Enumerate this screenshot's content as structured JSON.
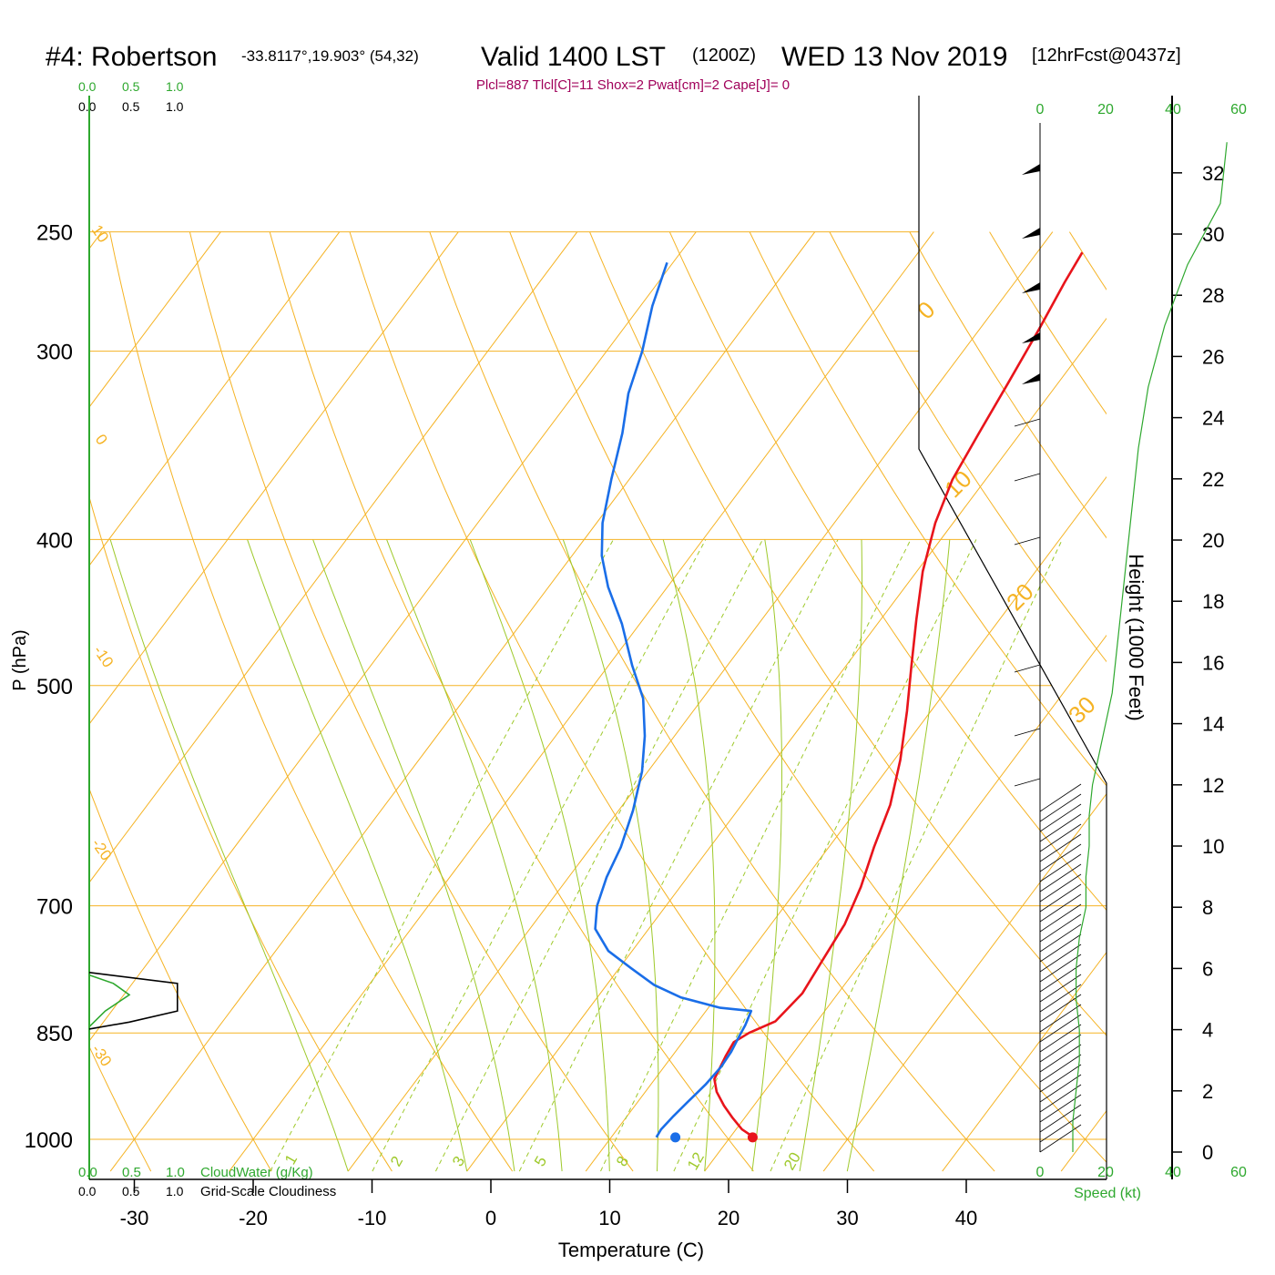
{
  "header": {
    "station": "#4: Robertson",
    "coords": "-33.8117°,19.903° (54,32)",
    "valid": "Valid 1400 LST",
    "zulu": "(1200Z)",
    "date": "WED 13 Nov 2019",
    "forecast": "[12hrFcst@0437z]",
    "indices": "Plcl=887 Tlcl[C]=11 Shox=2 Pwat[cm]=2 Cape[J]= 0"
  },
  "colors": {
    "temperature": "#e8141b",
    "dewpoint": "#1a6ee8",
    "isotherm": "#f5b324",
    "dry_adiabat": "#f5b324",
    "moist_adiabat": "#9ec92a",
    "mixing_ratio": "#9ec92a",
    "cloud": "#2ea82e",
    "indices": "#a0005a"
  },
  "chart_data": {
    "type": "line",
    "xlabel": "Temperature (C)",
    "ylabel": "P (hPa)",
    "y2label": "Height (1000 Feet)",
    "x_ticks": [
      -30,
      -20,
      -10,
      0,
      10,
      20,
      30,
      40
    ],
    "p_ticks": [
      250,
      300,
      400,
      500,
      700,
      850,
      1000
    ],
    "height_ticks": [
      0,
      2,
      4,
      6,
      8,
      10,
      12,
      14,
      16,
      18,
      20,
      22,
      24,
      26,
      28,
      30,
      32
    ],
    "cloud_scale_top": [
      "0.0",
      "0.5",
      "1.0"
    ],
    "cloud_scale_top2": [
      "0.0",
      "0.5",
      "1.0"
    ],
    "cloud_scale_bottom": [
      "0.0",
      "0.5",
      "1.0"
    ],
    "cloud_scale_bottom2": [
      "0.0",
      "0.5",
      "1.0"
    ],
    "cloudwater_label": "CloudWater (g/Kg)",
    "cloudiness_label": "Grid-Scale Cloudiness",
    "speed_ticks": [
      "0",
      "20",
      "40",
      "60"
    ],
    "speed_label": "Speed (kt)",
    "dry_adiabat_labels": [
      "10",
      "0",
      "-10",
      "-20",
      "-30"
    ],
    "moist_adiabat_labels": [
      "0",
      "10",
      "20",
      "30"
    ],
    "mixing_ratio_labels": [
      "1",
      "2",
      "3",
      "5",
      "8",
      "12",
      "20"
    ],
    "series": [
      {
        "name": "temperature",
        "points": [
          [
            22.0,
            997
          ],
          [
            20.5,
            985
          ],
          [
            19.0,
            968
          ],
          [
            17.5,
            950
          ],
          [
            16.0,
            930
          ],
          [
            15.0,
            912
          ],
          [
            14.5,
            880
          ],
          [
            14.3,
            862
          ],
          [
            15.0,
            850
          ],
          [
            16.5,
            835
          ],
          [
            17.0,
            800
          ],
          [
            16.6,
            760
          ],
          [
            16.2,
            720
          ],
          [
            15.2,
            680
          ],
          [
            13.8,
            640
          ],
          [
            12.5,
            600
          ],
          [
            10.5,
            560
          ],
          [
            8.0,
            520
          ],
          [
            5.5,
            485
          ],
          [
            3.0,
            452
          ],
          [
            0.5,
            420
          ],
          [
            -1.5,
            390
          ],
          [
            -2.8,
            365
          ],
          [
            -3.5,
            340
          ],
          [
            -4.2,
            315
          ],
          [
            -5.0,
            290
          ],
          [
            -5.8,
            270
          ],
          [
            -6.2,
            258
          ]
        ]
      },
      {
        "name": "dewpoint",
        "points": [
          [
            13.8,
            997
          ],
          [
            13.7,
            985
          ],
          [
            13.9,
            965
          ],
          [
            14.2,
            945
          ],
          [
            14.6,
            920
          ],
          [
            14.8,
            895
          ],
          [
            14.7,
            875
          ],
          [
            14.4,
            855
          ],
          [
            14.2,
            840
          ],
          [
            13.8,
            822
          ],
          [
            11.0,
            818
          ],
          [
            7.0,
            805
          ],
          [
            4.0,
            790
          ],
          [
            1.0,
            770
          ],
          [
            -2.0,
            750
          ],
          [
            -4.5,
            725
          ],
          [
            -5.8,
            700
          ],
          [
            -6.8,
            670
          ],
          [
            -7.5,
            640
          ],
          [
            -8.8,
            605
          ],
          [
            -10.5,
            570
          ],
          [
            -12.5,
            540
          ],
          [
            -15.0,
            510
          ],
          [
            -18.0,
            485
          ],
          [
            -21.5,
            455
          ],
          [
            -25.0,
            430
          ],
          [
            -27.5,
            410
          ],
          [
            -29.5,
            390
          ],
          [
            -31.5,
            365
          ],
          [
            -33.5,
            340
          ],
          [
            -35.5,
            320
          ],
          [
            -37.0,
            300
          ],
          [
            -39.0,
            280
          ],
          [
            -40.5,
            262
          ]
        ]
      },
      {
        "name": "surface-temperature-marker",
        "points": [
          [
            21.9,
            997
          ]
        ]
      },
      {
        "name": "surface-dewpoint-marker",
        "points": [
          [
            15.4,
            997
          ]
        ]
      }
    ],
    "height_profile_kt": [
      [
        10,
        0
      ],
      [
        10,
        1
      ],
      [
        11,
        2
      ],
      [
        12,
        3
      ],
      [
        12,
        4
      ],
      [
        11,
        5
      ],
      [
        11,
        6
      ],
      [
        12,
        7
      ],
      [
        14,
        8
      ],
      [
        14,
        9
      ],
      [
        15,
        10
      ],
      [
        15,
        11
      ],
      [
        16,
        12
      ],
      [
        18,
        13
      ],
      [
        20,
        14
      ],
      [
        22,
        15
      ],
      [
        24,
        17
      ],
      [
        26,
        19
      ],
      [
        28,
        21
      ],
      [
        30,
        23
      ],
      [
        33,
        25
      ],
      [
        38,
        27
      ],
      [
        45,
        29
      ],
      [
        55,
        31
      ],
      [
        57,
        33
      ]
    ],
    "cloud_profile": {
      "cloudiness": [
        [
          0,
          845
        ],
        [
          0.5,
          836
        ],
        [
          1.1,
          822
        ],
        [
          1.1,
          788
        ],
        [
          0,
          775
        ]
      ],
      "cloudwater": [
        [
          0,
          842
        ],
        [
          0.2,
          822
        ],
        [
          0.5,
          802
        ],
        [
          0.3,
          788
        ],
        [
          0,
          778
        ]
      ]
    }
  }
}
